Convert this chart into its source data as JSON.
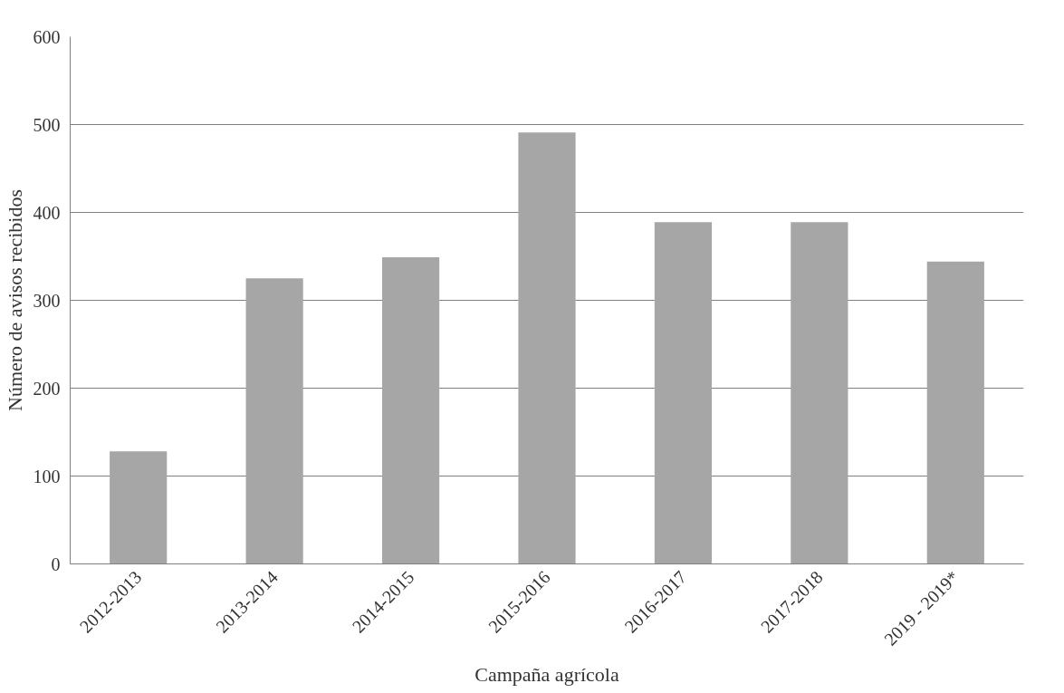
{
  "chart_data": {
    "type": "bar",
    "xlabel": "Campaña agrícola",
    "ylabel": "Número de avisos recibidos",
    "categories": [
      "2012-2013",
      "2013-2014",
      "2014-2015",
      "2015-2016",
      "2016-2017",
      "2017-2018",
      "2019 - 2019*"
    ],
    "values": [
      128,
      325,
      349,
      491,
      389,
      389,
      344
    ],
    "color": "#a6a6a6",
    "ylim": [
      0,
      600
    ],
    "yticks": [
      0,
      100,
      200,
      300,
      400,
      500,
      600
    ],
    "grid": "y"
  }
}
